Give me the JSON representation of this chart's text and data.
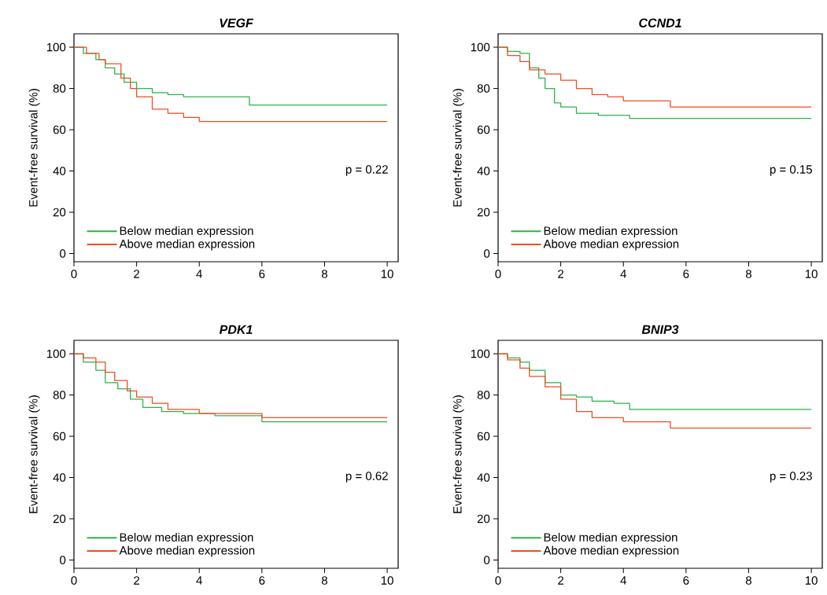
{
  "chart_data": [
    {
      "type": "step",
      "title": "VEGF",
      "ylabel": "Event-free survival (%)",
      "xlim": [
        0,
        10.35
      ],
      "ylim": [
        -4,
        106.5
      ],
      "xticks": [
        0,
        2,
        4,
        6,
        8,
        10
      ],
      "yticks": [
        0,
        20,
        40,
        60,
        80,
        100
      ],
      "legend": "bottom left",
      "annotations": [
        "p = 0.22"
      ],
      "series": [
        {
          "name": "Below median expression",
          "color": "#2db34a",
          "x": [
            0,
            0.3,
            0.7,
            1.0,
            1.3,
            1.6,
            2.0,
            2.5,
            3.0,
            3.5,
            5.6,
            10
          ],
          "values": [
            100,
            97,
            94,
            90,
            87,
            83,
            80,
            78,
            77,
            76,
            72,
            72
          ]
        },
        {
          "name": "Above median expression",
          "color": "#f04e23",
          "x": [
            0,
            0.4,
            0.8,
            1.0,
            1.5,
            1.8,
            2.0,
            2.5,
            3.0,
            3.5,
            4.0,
            10
          ],
          "values": [
            100,
            97,
            94,
            92,
            85,
            80,
            76,
            70,
            68,
            66,
            64,
            64
          ]
        }
      ]
    },
    {
      "type": "step",
      "title": "CCND1",
      "ylabel": "Event-free survival (%)",
      "xlim": [
        0,
        10.35
      ],
      "ylim": [
        -4,
        106.5
      ],
      "xticks": [
        0,
        2,
        4,
        6,
        8,
        10
      ],
      "yticks": [
        0,
        20,
        40,
        60,
        80,
        100
      ],
      "legend": "bottom left",
      "annotations": [
        "p = 0.15"
      ],
      "series": [
        {
          "name": "Below median expression",
          "color": "#2db34a",
          "x": [
            0,
            0.3,
            0.7,
            1.0,
            1.3,
            1.5,
            1.8,
            2.0,
            2.5,
            3.2,
            4.2,
            10
          ],
          "values": [
            100,
            98,
            97,
            90,
            85,
            80,
            73,
            71,
            68,
            67,
            65.5,
            65.5
          ]
        },
        {
          "name": "Above median expression",
          "color": "#f04e23",
          "x": [
            0,
            0.3,
            0.7,
            1.0,
            1.5,
            2.0,
            2.5,
            3.0,
            3.5,
            4.0,
            5.5,
            10
          ],
          "values": [
            100,
            96,
            93,
            89,
            87,
            84,
            80,
            77,
            76,
            74,
            71,
            71
          ]
        }
      ]
    },
    {
      "type": "step",
      "title": "PDK1",
      "ylabel": "Event-free survival (%)",
      "xlim": [
        0,
        10.35
      ],
      "ylim": [
        -4,
        106.5
      ],
      "xticks": [
        0,
        2,
        4,
        6,
        8,
        10
      ],
      "yticks": [
        0,
        20,
        40,
        60,
        80,
        100
      ],
      "legend": "bottom left",
      "annotations": [
        "p = 0.62"
      ],
      "series": [
        {
          "name": "Below median expression",
          "color": "#2db34a",
          "x": [
            0,
            0.3,
            0.7,
            1.0,
            1.4,
            1.8,
            2.2,
            2.8,
            3.5,
            4.5,
            6.0,
            10
          ],
          "values": [
            100,
            96,
            92,
            86,
            83,
            78,
            74,
            72,
            71,
            70,
            67,
            67
          ]
        },
        {
          "name": "Above median expression",
          "color": "#f04e23",
          "x": [
            0,
            0.3,
            0.7,
            1.0,
            1.3,
            1.7,
            2.0,
            2.5,
            3.0,
            4.0,
            6.0,
            10
          ],
          "values": [
            100,
            98,
            96,
            91,
            87,
            82,
            79,
            76,
            73,
            71,
            69,
            69
          ]
        }
      ]
    },
    {
      "type": "step",
      "title": "BNIP3",
      "ylabel": "Event-free survival (%)",
      "xlim": [
        0,
        10.35
      ],
      "ylim": [
        -4,
        106.5
      ],
      "xticks": [
        0,
        2,
        4,
        6,
        8,
        10
      ],
      "yticks": [
        0,
        20,
        40,
        60,
        80,
        100
      ],
      "legend": "bottom left",
      "annotations": [
        "p = 0.23"
      ],
      "series": [
        {
          "name": "Below median expression",
          "color": "#2db34a",
          "x": [
            0,
            0.3,
            0.7,
            1.0,
            1.5,
            2.0,
            2.5,
            3.0,
            3.7,
            4.2,
            10
          ],
          "values": [
            100,
            98,
            96,
            92,
            86,
            80,
            79,
            77,
            76,
            73,
            73
          ]
        },
        {
          "name": "Above median expression",
          "color": "#f04e23",
          "x": [
            0,
            0.3,
            0.7,
            1.0,
            1.5,
            2.0,
            2.5,
            3.0,
            4.0,
            5.5,
            10
          ],
          "values": [
            100,
            97,
            93,
            89,
            84,
            78,
            72,
            69,
            67,
            64,
            64
          ]
        }
      ]
    }
  ]
}
